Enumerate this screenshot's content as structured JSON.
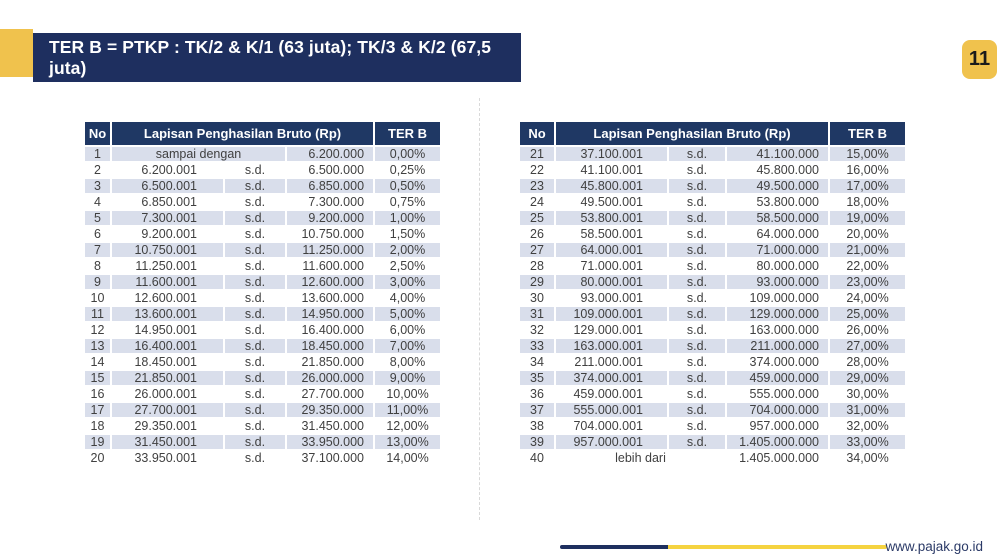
{
  "colors": {
    "navy": "#1e2f5f",
    "navy_header": "#1f3864",
    "yellow": "#f0c24d",
    "row_shade": "#d9deeb",
    "text_dark": "#404040",
    "divider": "#d9d9d9",
    "footer_text": "#2b3a67",
    "badge_text": "#1a1a1a"
  },
  "banner": {
    "title": "TER B = PTKP : TK/2 & K/1 (63 juta); TK/3 & K/2 (67,5 juta)"
  },
  "page_number": "11",
  "table": {
    "headers": {
      "no": "No",
      "range": "Lapisan Penghasilan Bruto (Rp)",
      "rate": "TER B"
    }
  },
  "tables": [
    {
      "rows": [
        [
          "1",
          "sampai dengan",
          null,
          "6.200.000",
          "0,00%"
        ],
        [
          "2",
          "6.200.001",
          "s.d.",
          "6.500.000",
          "0,25%"
        ],
        [
          "3",
          "6.500.001",
          "s.d.",
          "6.850.000",
          "0,50%"
        ],
        [
          "4",
          "6.850.001",
          "s.d.",
          "7.300.000",
          "0,75%"
        ],
        [
          "5",
          "7.300.001",
          "s.d.",
          "9.200.000",
          "1,00%"
        ],
        [
          "6",
          "9.200.001",
          "s.d.",
          "10.750.000",
          "1,50%"
        ],
        [
          "7",
          "10.750.001",
          "s.d.",
          "11.250.000",
          "2,00%"
        ],
        [
          "8",
          "11.250.001",
          "s.d.",
          "11.600.000",
          "2,50%"
        ],
        [
          "9",
          "11.600.001",
          "s.d.",
          "12.600.000",
          "3,00%"
        ],
        [
          "10",
          "12.600.001",
          "s.d.",
          "13.600.000",
          "4,00%"
        ],
        [
          "11",
          "13.600.001",
          "s.d.",
          "14.950.000",
          "5,00%"
        ],
        [
          "12",
          "14.950.001",
          "s.d.",
          "16.400.000",
          "6,00%"
        ],
        [
          "13",
          "16.400.001",
          "s.d.",
          "18.450.000",
          "7,00%"
        ],
        [
          "14",
          "18.450.001",
          "s.d.",
          "21.850.000",
          "8,00%"
        ],
        [
          "15",
          "21.850.001",
          "s.d.",
          "26.000.000",
          "9,00%"
        ],
        [
          "16",
          "26.000.001",
          "s.d.",
          "27.700.000",
          "10,00%"
        ],
        [
          "17",
          "27.700.001",
          "s.d.",
          "29.350.000",
          "11,00%"
        ],
        [
          "18",
          "29.350.001",
          "s.d.",
          "31.450.000",
          "12,00%"
        ],
        [
          "19",
          "31.450.001",
          "s.d.",
          "33.950.000",
          "13,00%"
        ],
        [
          "20",
          "33.950.001",
          "s.d.",
          "37.100.000",
          "14,00%"
        ]
      ]
    },
    {
      "rows": [
        [
          "21",
          "37.100.001",
          "s.d.",
          "41.100.000",
          "15,00%"
        ],
        [
          "22",
          "41.100.001",
          "s.d.",
          "45.800.000",
          "16,00%"
        ],
        [
          "23",
          "45.800.001",
          "s.d.",
          "49.500.000",
          "17,00%"
        ],
        [
          "24",
          "49.500.001",
          "s.d.",
          "53.800.000",
          "18,00%"
        ],
        [
          "25",
          "53.800.001",
          "s.d.",
          "58.500.000",
          "19,00%"
        ],
        [
          "26",
          "58.500.001",
          "s.d.",
          "64.000.000",
          "20,00%"
        ],
        [
          "27",
          "64.000.001",
          "s.d.",
          "71.000.000",
          "21,00%"
        ],
        [
          "28",
          "71.000.001",
          "s.d.",
          "80.000.000",
          "22,00%"
        ],
        [
          "29",
          "80.000.001",
          "s.d.",
          "93.000.000",
          "23,00%"
        ],
        [
          "30",
          "93.000.001",
          "s.d.",
          "109.000.000",
          "24,00%"
        ],
        [
          "31",
          "109.000.001",
          "s.d.",
          "129.000.000",
          "25,00%"
        ],
        [
          "32",
          "129.000.001",
          "s.d.",
          "163.000.000",
          "26,00%"
        ],
        [
          "33",
          "163.000.001",
          "s.d.",
          "211.000.000",
          "27,00%"
        ],
        [
          "34",
          "211.000.001",
          "s.d.",
          "374.000.000",
          "28,00%"
        ],
        [
          "35",
          "374.000.001",
          "s.d.",
          "459.000.000",
          "29,00%"
        ],
        [
          "36",
          "459.000.001",
          "s.d.",
          "555.000.000",
          "30,00%"
        ],
        [
          "37",
          "555.000.001",
          "s.d.",
          "704.000.000",
          "31,00%"
        ],
        [
          "38",
          "704.000.001",
          "s.d.",
          "957.000.000",
          "32,00%"
        ],
        [
          "39",
          "957.000.001",
          "s.d.",
          "1.405.000.000",
          "33,00%"
        ],
        [
          "40",
          "lebih dari",
          null,
          "1.405.000.000",
          "34,00%"
        ]
      ]
    }
  ],
  "footer": {
    "url": "www.pajak.go.id"
  }
}
